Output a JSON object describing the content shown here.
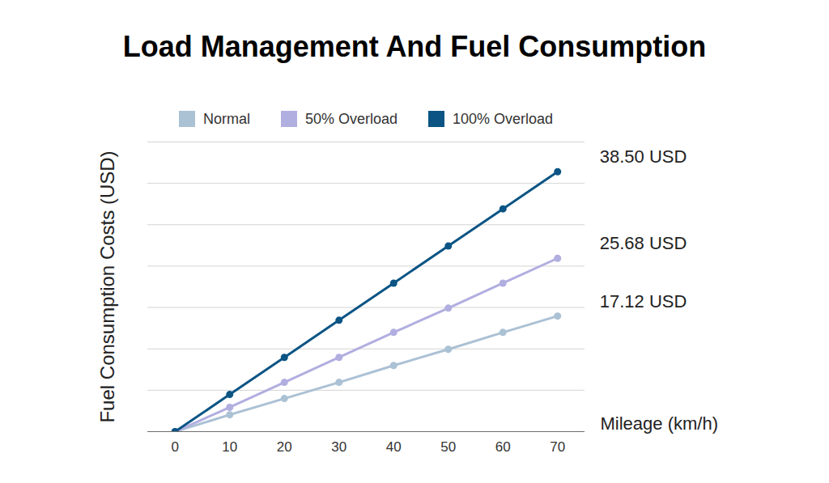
{
  "chart_data": {
    "type": "line",
    "title": "Load Management And Fuel Consumption",
    "x_label": "Mileage (km/h)",
    "y_label": "Fuel Consumption Costs (USD)",
    "x": [
      0,
      10,
      20,
      30,
      40,
      50,
      60,
      70
    ],
    "series": [
      {
        "name": "Normal",
        "color": "#abc1d4",
        "values": [
          0,
          2.5,
          4.9,
          7.3,
          9.8,
          12.2,
          14.7,
          17.12
        ]
      },
      {
        "name": "50% Overload",
        "color": "#b1aee0",
        "values": [
          0,
          3.6,
          7.3,
          11.0,
          14.7,
          18.3,
          22.0,
          25.68
        ]
      },
      {
        "name": "100% Overload",
        "color": "#0b5484",
        "values": [
          0,
          5.5,
          11.0,
          16.5,
          22.0,
          27.5,
          33.0,
          38.5
        ]
      }
    ],
    "xlim": [
      -5,
      75
    ],
    "xticks": [
      0,
      10,
      20,
      30,
      40,
      50,
      60,
      70
    ],
    "ylim": [
      0,
      42.91
    ],
    "yticks": [
      0,
      6.13,
      12.26,
      18.39,
      24.52,
      30.65,
      36.78,
      42.91
    ],
    "grid": true,
    "legend": "top",
    "tick_labels": "x",
    "marker": "circle",
    "annotations": [
      {
        "text": "38.50 USD",
        "x": 70,
        "y": 38.5
      },
      {
        "text": "25.68 USD",
        "x": 70,
        "y": 25.68
      },
      {
        "text": "17.12 USD",
        "x": 70,
        "y": 17.12
      }
    ]
  }
}
